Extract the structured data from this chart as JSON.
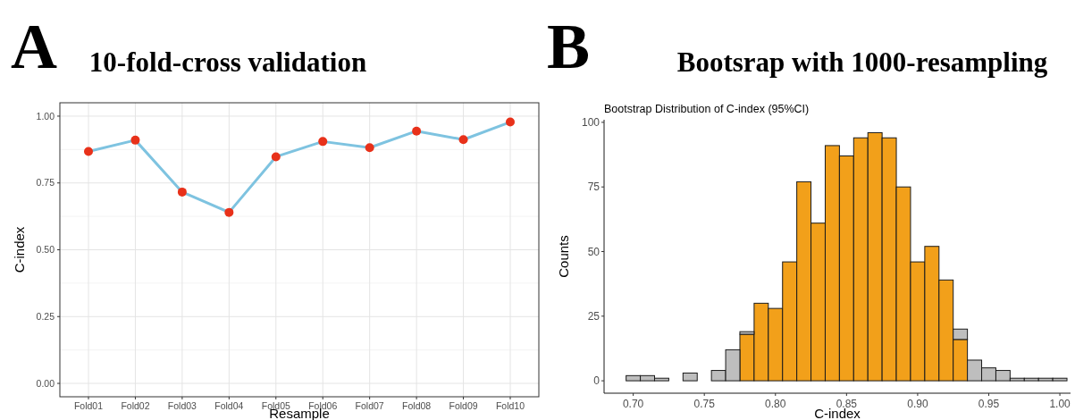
{
  "chart_data": [
    {
      "type": "line",
      "title": "10-fold-cross validation",
      "annotations": [
        "A"
      ],
      "xlabel": "Resample",
      "ylabel": "C-index",
      "categories": [
        "Fold01",
        "Fold02",
        "Fold03",
        "Fold04",
        "Fold05",
        "Fold06",
        "Fold07",
        "Fold08",
        "Fold09",
        "Fold10"
      ],
      "series": [
        {
          "color": "#7ec3e0",
          "values": [
            0.868,
            0.91,
            0.716,
            0.64,
            0.848,
            0.905,
            0.882,
            0.944,
            0.912,
            0.978
          ]
        },
        {
          "type": "scatter",
          "color": "#e8311a",
          "marker": "circle",
          "values": [
            0.868,
            0.91,
            0.716,
            0.64,
            0.848,
            0.905,
            0.882,
            0.944,
            0.912,
            0.978
          ]
        }
      ],
      "ylim": [
        -0.05,
        1.05
      ],
      "yticks": [
        {
          "value": 0,
          "label": "0.00"
        },
        0.25,
        {
          "value": 0.5,
          "label": "0.50"
        },
        0.75,
        {
          "value": 1,
          "label": "1.00"
        }
      ],
      "grid": true
    },
    {
      "type": "bar",
      "title": "Bootsrap with 1000-resampling",
      "annotations": [
        "B"
      ],
      "subtitle": "Bootstrap Distribution of C-index (95%CI)",
      "xlabel": "C-index",
      "ylabel": "Counts",
      "x": [
        0.7,
        0.71,
        0.72,
        0.73,
        0.74,
        0.75,
        0.76,
        0.77,
        0.78,
        0.79,
        0.8,
        0.81,
        0.82,
        0.83,
        0.84,
        0.85,
        0.86,
        0.87,
        0.88,
        0.89,
        0.9,
        0.91,
        0.92,
        0.93,
        0.94,
        0.95,
        0.96,
        0.97,
        0.98,
        0.99,
        1.0
      ],
      "stacked": true,
      "series": [
        {
          "color": "#f2a01a",
          "values": [
            null,
            null,
            null,
            null,
            null,
            null,
            null,
            null,
            18,
            30,
            28,
            46,
            77,
            61,
            91,
            87,
            94,
            96,
            94,
            75,
            46,
            52,
            39,
            16,
            null,
            null,
            null,
            null,
            null,
            null,
            null
          ]
        },
        {
          "color": "#bebebe",
          "values": [
            2,
            2,
            1,
            0,
            3,
            0,
            4,
            12,
            1,
            null,
            null,
            null,
            null,
            null,
            null,
            null,
            null,
            null,
            null,
            null,
            null,
            null,
            null,
            4,
            8,
            5,
            4,
            1,
            1,
            1,
            1
          ]
        }
      ],
      "xlim": [
        0.6795,
        1.0075
      ],
      "xticks": [
        {
          "value": 0.7,
          "label": "0.70"
        },
        0.75,
        {
          "value": 0.8,
          "label": "0.80"
        },
        0.85,
        {
          "value": 0.9,
          "label": "0.90"
        },
        0.95,
        {
          "value": 1,
          "label": "1.00"
        }
      ],
      "ylim": [
        -4.8,
        101
      ],
      "yticks": [
        0,
        25,
        50,
        75,
        100
      ],
      "grid": false
    }
  ]
}
